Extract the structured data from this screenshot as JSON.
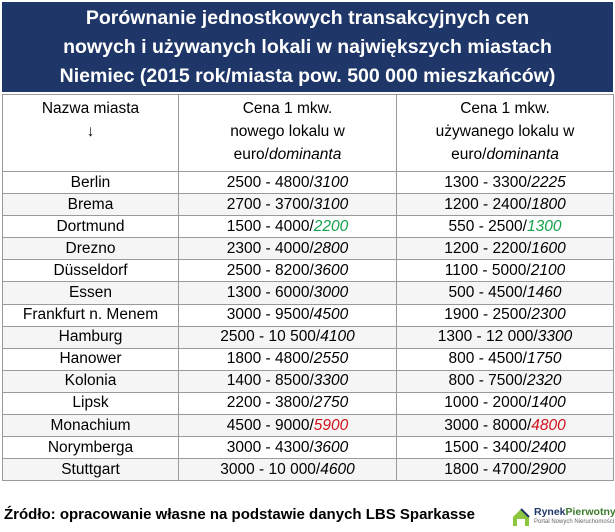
{
  "title": {
    "line1": "Porównanie jednostkowych transakcyjnych cen",
    "line2": "nowych i używanych lokali w największych miastach",
    "line3": "Niemiec (2015 rok/miasta pow. 500 000 mieszkańców)"
  },
  "table": {
    "headers": {
      "city": {
        "line1": "Nazwa miasta",
        "line2": "↓"
      },
      "new": {
        "line1": "Cena 1 mkw.",
        "line2": "nowego lokalu w",
        "line3": "euro/",
        "line3_italic": "dominanta"
      },
      "used": {
        "line1": "Cena 1 mkw.",
        "line2": "używanego lokalu w",
        "line3": "euro/",
        "line3_italic": "dominanta"
      }
    },
    "rows": [
      {
        "city": "Berlin",
        "new_range": "2500 - 4800/",
        "new_dom": "3100",
        "used_range": "1300 - 3300/",
        "used_dom": "2225"
      },
      {
        "city": "Brema",
        "new_range": "2700 - 3700/",
        "new_dom": "3100",
        "used_range": "1200 - 2400/",
        "used_dom": "1800"
      },
      {
        "city": "Dortmund",
        "new_range": "1500 - 4000/",
        "new_dom": "2200",
        "used_range": "550 - 2500/",
        "used_dom": "1300"
      },
      {
        "city": "Drezno",
        "new_range": "2300 - 4000/",
        "new_dom": "2800",
        "used_range": "1200 - 2200/",
        "used_dom": "1600"
      },
      {
        "city": "Düsseldorf",
        "new_range": "2500 - 8200/",
        "new_dom": "3600",
        "used_range": "1100 - 5000/",
        "used_dom": "2100"
      },
      {
        "city": "Essen",
        "new_range": "1300 - 6000/",
        "new_dom": "3000",
        "used_range": "500 - 4500/",
        "used_dom": "1460"
      },
      {
        "city": "Frankfurt n. Menem",
        "new_range": "3000 - 9500/",
        "new_dom": "4500",
        "used_range": "1900 - 2500/",
        "used_dom": "2300"
      },
      {
        "city": "Hamburg",
        "new_range": "2500 - 10 500/",
        "new_dom": "4100",
        "used_range": "1300 - 12 000/",
        "used_dom": "3300"
      },
      {
        "city": "Hanower",
        "new_range": "1800 - 4800/",
        "new_dom": "2550",
        "used_range": "800 - 4500/",
        "used_dom": "1750"
      },
      {
        "city": "Kolonia",
        "new_range": "1400 - 8500/",
        "new_dom": "3300",
        "used_range": "800 - 7500/",
        "used_dom": "2320"
      },
      {
        "city": "Lipsk",
        "new_range": "2200 - 3800/",
        "new_dom": "2750",
        "used_range": "1000 - 2000/",
        "used_dom": "1400"
      },
      {
        "city": "Monachium",
        "new_range": "4500 - 9000/",
        "new_dom": "5900",
        "used_range": "3000 - 8000/",
        "used_dom": "4800"
      },
      {
        "city": "Norymberga",
        "new_range": "3000 - 4300/",
        "new_dom": "3600",
        "used_range": "1500 - 3400/",
        "used_dom": "2400"
      },
      {
        "city": "Stuttgart",
        "new_range": "3000 - 10 000/",
        "new_dom": "4600",
        "used_range": "1800 - 4700/",
        "used_dom": "2900"
      }
    ],
    "highlight_colors": {
      "lowest": "#13a34a",
      "highest": "#d0121b"
    }
  },
  "footer": {
    "source": "Źródło: opracowanie własne na podstawie danych LBS Sparkasse"
  },
  "logo": {
    "name_part1": "Rynek",
    "name_part2": "Pierwotny",
    "subtitle": "Portal Nowych Nieruchomości"
  }
}
